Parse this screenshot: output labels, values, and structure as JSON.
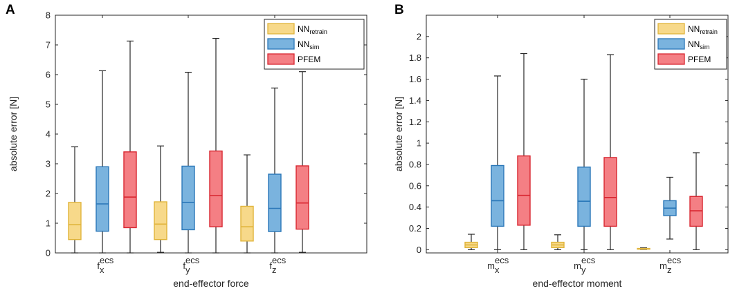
{
  "chart_data": [
    {
      "type": "box",
      "panel": "A",
      "ylabel": "absolute error [N]",
      "xlabel": "end-effector force",
      "ylim": [
        0,
        8
      ],
      "yticks": [
        0,
        1,
        2,
        3,
        4,
        5,
        6,
        7,
        8
      ],
      "categories": [
        {
          "base": "f",
          "sub": "x",
          "sup": "ecs"
        },
        {
          "base": "f",
          "sub": "y",
          "sup": "ecs"
        },
        {
          "base": "f",
          "sub": "z",
          "sup": "ecs"
        }
      ],
      "legend_position": "top-right",
      "series": [
        {
          "name": "NN",
          "sub": "retrain",
          "fill": "#f7d98a",
          "stroke": "#e0b43a",
          "boxes": [
            {
              "min": 0,
              "q1": 0.45,
              "median": 0.95,
              "q3": 1.7,
              "max": 3.57
            },
            {
              "min": 0.02,
              "q1": 0.45,
              "median": 0.97,
              "q3": 1.72,
              "max": 3.6
            },
            {
              "min": 0,
              "q1": 0.4,
              "median": 0.88,
              "q3": 1.57,
              "max": 3.3
            }
          ]
        },
        {
          "name": "NN",
          "sub": "sim",
          "fill": "#7ab3de",
          "stroke": "#2a77b8",
          "boxes": [
            {
              "min": 0,
              "q1": 0.73,
              "median": 1.65,
              "q3": 2.9,
              "max": 6.13
            },
            {
              "min": 0,
              "q1": 0.78,
              "median": 1.7,
              "q3": 2.92,
              "max": 6.08
            },
            {
              "min": 0,
              "q1": 0.72,
              "median": 1.5,
              "q3": 2.65,
              "max": 5.55
            }
          ]
        },
        {
          "name": "PFEM",
          "sub": "",
          "fill": "#f47f84",
          "stroke": "#d8252f",
          "boxes": [
            {
              "min": 0,
              "q1": 0.85,
              "median": 1.88,
              "q3": 3.4,
              "max": 7.13
            },
            {
              "min": 0,
              "q1": 0.88,
              "median": 1.93,
              "q3": 3.43,
              "max": 7.22
            },
            {
              "min": 0.02,
              "q1": 0.8,
              "median": 1.68,
              "q3": 2.93,
              "max": 6.1
            }
          ]
        }
      ]
    },
    {
      "type": "box",
      "panel": "B",
      "ylabel": "absolute error [N]",
      "xlabel": "end-effector moment",
      "ylim": [
        -0.03,
        2.2
      ],
      "yticks": [
        0,
        0.2,
        0.4,
        0.6,
        0.8,
        1,
        1.2,
        1.4,
        1.6,
        1.8,
        2
      ],
      "categories": [
        {
          "base": "m",
          "sub": "x",
          "sup": "ecs"
        },
        {
          "base": "m",
          "sub": "y",
          "sup": "ecs"
        },
        {
          "base": "m",
          "sub": "z",
          "sup": "ecs"
        }
      ],
      "legend_position": "top-right",
      "series": [
        {
          "name": "NN",
          "sub": "retrain",
          "fill": "#f7d98a",
          "stroke": "#e0b43a",
          "boxes": [
            {
              "min": 0,
              "q1": 0.02,
              "median": 0.045,
              "q3": 0.07,
              "max": 0.145
            },
            {
              "min": 0,
              "q1": 0.02,
              "median": 0.045,
              "q3": 0.07,
              "max": 0.14
            },
            {
              "min": 0.002,
              "q1": 0.005,
              "median": 0.008,
              "q3": 0.012,
              "max": 0.018
            }
          ]
        },
        {
          "name": "NN",
          "sub": "sim",
          "fill": "#7ab3de",
          "stroke": "#2a77b8",
          "boxes": [
            {
              "min": 0,
              "q1": 0.22,
              "median": 0.46,
              "q3": 0.79,
              "max": 1.63
            },
            {
              "min": 0,
              "q1": 0.22,
              "median": 0.455,
              "q3": 0.775,
              "max": 1.6
            },
            {
              "min": 0.1,
              "q1": 0.32,
              "median": 0.39,
              "q3": 0.46,
              "max": 0.68
            }
          ]
        },
        {
          "name": "PFEM",
          "sub": "",
          "fill": "#f47f84",
          "stroke": "#d8252f",
          "boxes": [
            {
              "min": 0,
              "q1": 0.23,
              "median": 0.51,
              "q3": 0.88,
              "max": 1.84
            },
            {
              "min": 0,
              "q1": 0.22,
              "median": 0.49,
              "q3": 0.865,
              "max": 1.83
            },
            {
              "min": 0,
              "q1": 0.22,
              "median": 0.365,
              "q3": 0.5,
              "max": 0.91
            }
          ]
        }
      ]
    }
  ]
}
